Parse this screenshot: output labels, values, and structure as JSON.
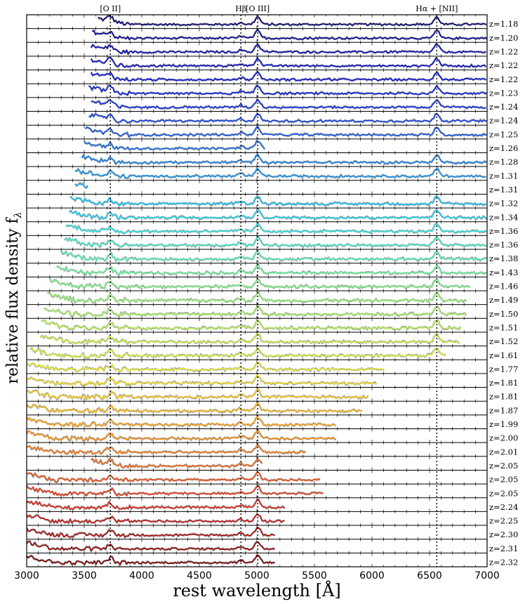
{
  "chart_data": {
    "type": "line",
    "xlabel": "rest wavelength [Å]",
    "ylabel": "relative flux density f",
    "ylabel_subscript": "λ",
    "xlim": [
      3000,
      7000
    ],
    "xticks": [
      3000,
      3500,
      4000,
      4500,
      5000,
      5500,
      6000,
      6500,
      7000
    ],
    "grid": false,
    "emission_lines": [
      {
        "label": "[O II]",
        "wavelength": 3727
      },
      {
        "label": "Hβ",
        "wavelength": 4861
      },
      {
        "label": "[O III]",
        "wavelength": 5007
      },
      {
        "label": "Hα + [NII]",
        "wavelength": 6563
      }
    ],
    "series": [
      {
        "label": "z=1.18",
        "color": "#0a0a6e",
        "x_start": 3620,
        "x_end": 7000
      },
      {
        "label": "z=1.20",
        "color": "#0b0b96",
        "x_start": 3570,
        "x_end": 7000
      },
      {
        "label": "z=1.22",
        "color": "#0c10b0",
        "x_start": 3560,
        "x_end": 7000
      },
      {
        "label": "z=1.22",
        "color": "#0d14c0",
        "x_start": 3560,
        "x_end": 7000
      },
      {
        "label": "z=1.22",
        "color": "#0e18cc",
        "x_start": 3560,
        "x_end": 7000
      },
      {
        "label": "z=1.23",
        "color": "#1024d4",
        "x_start": 3540,
        "x_end": 7000
      },
      {
        "label": "z=1.24",
        "color": "#1430dc",
        "x_start": 3560,
        "x_end": 7000
      },
      {
        "label": "z=1.24",
        "color": "#1a44e0",
        "x_start": 3540,
        "x_end": 7000
      },
      {
        "label": "z=1.25",
        "color": "#1c5ae0",
        "x_start": 3510,
        "x_end": 7000
      },
      {
        "label": "z=1.26",
        "color": "#1e6ee0",
        "x_start": 3500,
        "x_end": 5080
      },
      {
        "label": "z=1.28",
        "color": "#1e82e4",
        "x_start": 3480,
        "x_end": 7000
      },
      {
        "label": "z=1.31",
        "color": "#1e96e8",
        "x_start": 3420,
        "x_end": 7000
      },
      {
        "label": "z=1.31",
        "color": "#1eaaec",
        "x_start": 3420,
        "x_end": 3540
      },
      {
        "label": "z=1.32",
        "color": "#20c0ee",
        "x_start": 3380,
        "x_end": 7000
      },
      {
        "label": "z=1.34",
        "color": "#24d0ec",
        "x_start": 3370,
        "x_end": 7000
      },
      {
        "label": "z=1.36",
        "color": "#34dede",
        "x_start": 3340,
        "x_end": 7000
      },
      {
        "label": "z=1.36",
        "color": "#44e8c8",
        "x_start": 3330,
        "x_end": 7000
      },
      {
        "label": "z=1.38",
        "color": "#58eeb2",
        "x_start": 3300,
        "x_end": 7000
      },
      {
        "label": "z=1.43",
        "color": "#6cf09c",
        "x_start": 3260,
        "x_end": 7000
      },
      {
        "label": "z=1.46",
        "color": "#80f088",
        "x_start": 3200,
        "x_end": 6860
      },
      {
        "label": "z=1.49",
        "color": "#94f078",
        "x_start": 3180,
        "x_end": 6820
      },
      {
        "label": "z=1.50",
        "color": "#a6f064",
        "x_start": 3150,
        "x_end": 6820
      },
      {
        "label": "z=1.51",
        "color": "#b8ee54",
        "x_start": 3130,
        "x_end": 6780
      },
      {
        "label": "z=1.52",
        "color": "#c8ee48",
        "x_start": 3120,
        "x_end": 6760
      },
      {
        "label": "z=1.61",
        "color": "#d8ee40",
        "x_start": 3030,
        "x_end": 6650
      },
      {
        "label": "z=1.77",
        "color": "#e8e83a",
        "x_start": 3000,
        "x_end": 6120
      },
      {
        "label": "z=1.81",
        "color": "#f0dc30",
        "x_start": 3000,
        "x_end": 6040
      },
      {
        "label": "z=1.81",
        "color": "#f4cc28",
        "x_start": 3000,
        "x_end": 5980
      },
      {
        "label": "z=1.87",
        "color": "#f6ba22",
        "x_start": 3000,
        "x_end": 5920
      },
      {
        "label": "z=1.99",
        "color": "#f6a420",
        "x_start": 3000,
        "x_end": 5690
      },
      {
        "label": "z=2.00",
        "color": "#f29020",
        "x_start": 3000,
        "x_end": 5690
      },
      {
        "label": "z=2.01",
        "color": "#ee7c20",
        "x_start": 3000,
        "x_end": 5430
      },
      {
        "label": "z=2.05",
        "color": "#ec6820",
        "x_start": 3560,
        "x_end": 5050
      },
      {
        "label": "z=2.05",
        "color": "#e85420",
        "x_start": 3000,
        "x_end": 5550
      },
      {
        "label": "z=2.05",
        "color": "#e44020",
        "x_start": 3000,
        "x_end": 5580
      },
      {
        "label": "z=2.24",
        "color": "#d42a20",
        "x_start": 3000,
        "x_end": 5250
      },
      {
        "label": "z=2.25",
        "color": "#c01c1c",
        "x_start": 3000,
        "x_end": 5250
      },
      {
        "label": "z=2.30",
        "color": "#a81414",
        "x_start": 3000,
        "x_end": 5160
      },
      {
        "label": "z=2.31",
        "color": "#900e0e",
        "x_start": 3000,
        "x_end": 5160
      },
      {
        "label": "z=2.32",
        "color": "#780808",
        "x_start": 3000,
        "x_end": 5160
      }
    ]
  }
}
